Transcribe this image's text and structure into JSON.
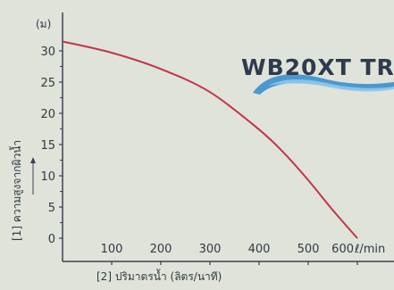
{
  "chart_data": {
    "type": "line",
    "y_unit": "(ม)",
    "x_unit": "ℓ/min",
    "xlabel": "[2] ปริมาตรน้ำ (ลิตร/นาที)",
    "ylabel": "[1] ความสูงจากผิวน้ำ",
    "xlim": [
      0,
      640
    ],
    "ylim": [
      0,
      33
    ],
    "x_ticks": [
      "100",
      "200",
      "300",
      "400",
      "500",
      "600"
    ],
    "y_ticks": [
      "0",
      "5",
      "10",
      "15",
      "20",
      "25",
      "30"
    ],
    "series": [
      {
        "color": "#c0364a",
        "x": [
          0,
          100,
          200,
          300,
          400,
          450,
          500,
          550,
          600
        ],
        "y": [
          31.5,
          29.7,
          27.1,
          23.4,
          17.4,
          13.7,
          9.3,
          4.5,
          0
        ]
      }
    ],
    "grid": false,
    "legend": "none"
  },
  "brand": {
    "text": "WB20XT TR",
    "swoosh_color": "#3a8fcf"
  }
}
